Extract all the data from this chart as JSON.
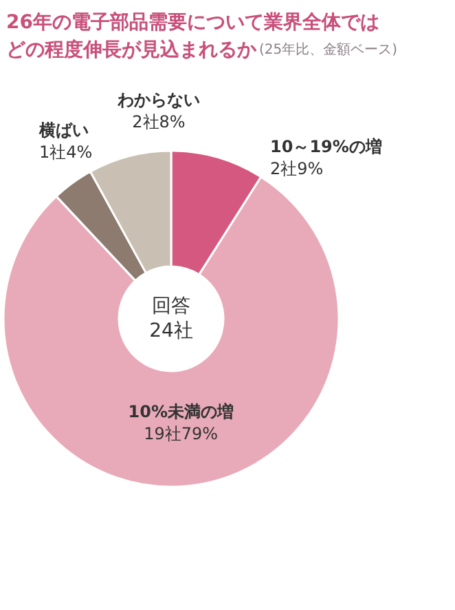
{
  "chart_data": {
    "type": "donut",
    "title": "26年の電子部品需要について業界全体ではどの程度伸長が見込まれるか",
    "subtitle": "(25年比、金額ベース)",
    "categories": [
      "10～19%の増",
      "10%未満の増",
      "横ばい",
      "わからない"
    ],
    "values": [
      9,
      79,
      4,
      8
    ],
    "value_labels": [
      "2社9%",
      "19社79%",
      "1社4%",
      "2社8%"
    ],
    "colors": [
      "#d4587f",
      "#e8aab8",
      "#8c7b6e",
      "#c9bfb3"
    ],
    "annotations": [
      "回答\n24社"
    ]
  }
}
